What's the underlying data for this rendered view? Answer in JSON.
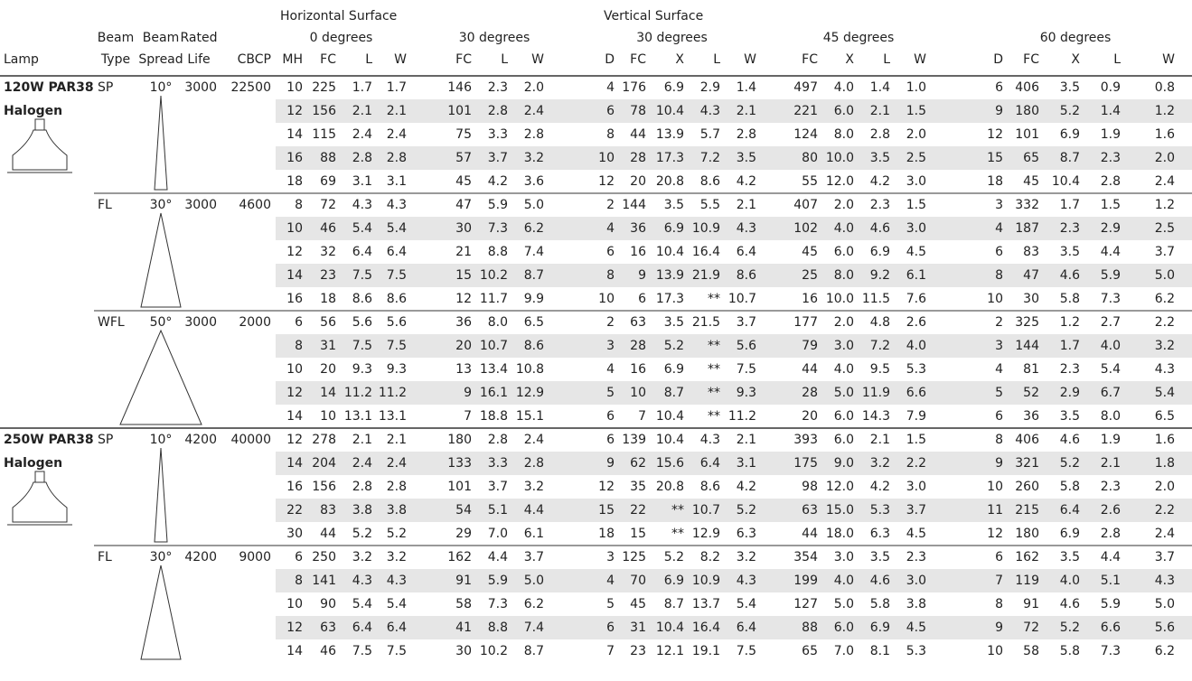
{
  "header": {
    "surfaces": [
      "Horizontal Surface",
      "Vertical Surface"
    ],
    "angles": [
      "0 degrees",
      "30 degrees",
      "30 degrees",
      "45 degrees",
      "60 degrees"
    ],
    "lamp": "Lamp",
    "beam_type": [
      "Beam",
      "Type"
    ],
    "beam_spread": [
      "Beam",
      "Spread"
    ],
    "rated_life": [
      "Rated",
      "Life"
    ],
    "cbcp": "CBCP",
    "columns": [
      "MH",
      "FC",
      "L",
      "W",
      "FC",
      "L",
      "W",
      "D",
      "FC",
      "X",
      "L",
      "W",
      "FC",
      "X",
      "L",
      "W",
      "D",
      "FC",
      "X",
      "L",
      "W"
    ]
  },
  "groups": [
    {
      "lamp": [
        "120W PAR38",
        "Halogen"
      ],
      "beam_type": "SP",
      "beam_spread": "10°",
      "rated_life": "3000",
      "cbcp": "22500",
      "rows": [
        [
          "10",
          "225",
          "1.7",
          "1.7",
          "146",
          "2.3",
          "2.0",
          "4",
          "176",
          "6.9",
          "2.9",
          "1.4",
          "497",
          "4.0",
          "1.4",
          "1.0",
          "6",
          "406",
          "3.5",
          "0.9",
          "0.8"
        ],
        [
          "12",
          "156",
          "2.1",
          "2.1",
          "101",
          "2.8",
          "2.4",
          "6",
          "78",
          "10.4",
          "4.3",
          "2.1",
          "221",
          "6.0",
          "2.1",
          "1.5",
          "9",
          "180",
          "5.2",
          "1.4",
          "1.2"
        ],
        [
          "14",
          "115",
          "2.4",
          "2.4",
          "75",
          "3.3",
          "2.8",
          "8",
          "44",
          "13.9",
          "5.7",
          "2.8",
          "124",
          "8.0",
          "2.8",
          "2.0",
          "12",
          "101",
          "6.9",
          "1.9",
          "1.6"
        ],
        [
          "16",
          "88",
          "2.8",
          "2.8",
          "57",
          "3.7",
          "3.2",
          "10",
          "28",
          "17.3",
          "7.2",
          "3.5",
          "80",
          "10.0",
          "3.5",
          "2.5",
          "15",
          "65",
          "8.7",
          "2.3",
          "2.0"
        ],
        [
          "18",
          "69",
          "3.1",
          "3.1",
          "45",
          "4.2",
          "3.6",
          "12",
          "20",
          "20.8",
          "8.6",
          "4.2",
          "55",
          "12.0",
          "4.2",
          "3.0",
          "18",
          "45",
          "10.4",
          "2.8",
          "2.4"
        ]
      ]
    },
    {
      "beam_type": "FL",
      "beam_spread": "30°",
      "rated_life": "3000",
      "cbcp": "4600",
      "rows": [
        [
          "8",
          "72",
          "4.3",
          "4.3",
          "47",
          "5.9",
          "5.0",
          "2",
          "144",
          "3.5",
          "5.5",
          "2.1",
          "407",
          "2.0",
          "2.3",
          "1.5",
          "3",
          "332",
          "1.7",
          "1.5",
          "1.2"
        ],
        [
          "10",
          "46",
          "5.4",
          "5.4",
          "30",
          "7.3",
          "6.2",
          "4",
          "36",
          "6.9",
          "10.9",
          "4.3",
          "102",
          "4.0",
          "4.6",
          "3.0",
          "4",
          "187",
          "2.3",
          "2.9",
          "2.5"
        ],
        [
          "12",
          "32",
          "6.4",
          "6.4",
          "21",
          "8.8",
          "7.4",
          "6",
          "16",
          "10.4",
          "16.4",
          "6.4",
          "45",
          "6.0",
          "6.9",
          "4.5",
          "6",
          "83",
          "3.5",
          "4.4",
          "3.7"
        ],
        [
          "14",
          "23",
          "7.5",
          "7.5",
          "15",
          "10.2",
          "8.7",
          "8",
          "9",
          "13.9",
          "21.9",
          "8.6",
          "25",
          "8.0",
          "9.2",
          "6.1",
          "8",
          "47",
          "4.6",
          "5.9",
          "5.0"
        ],
        [
          "16",
          "18",
          "8.6",
          "8.6",
          "12",
          "11.7",
          "9.9",
          "10",
          "6",
          "17.3",
          "**",
          "10.7",
          "16",
          "10.0",
          "11.5",
          "7.6",
          "10",
          "30",
          "5.8",
          "7.3",
          "6.2"
        ]
      ]
    },
    {
      "beam_type": "WFL",
      "beam_spread": "50°",
      "rated_life": "3000",
      "cbcp": "2000",
      "rows": [
        [
          "6",
          "56",
          "5.6",
          "5.6",
          "36",
          "8.0",
          "6.5",
          "2",
          "63",
          "3.5",
          "21.5",
          "3.7",
          "177",
          "2.0",
          "4.8",
          "2.6",
          "2",
          "325",
          "1.2",
          "2.7",
          "2.2"
        ],
        [
          "8",
          "31",
          "7.5",
          "7.5",
          "20",
          "10.7",
          "8.6",
          "3",
          "28",
          "5.2",
          "**",
          "5.6",
          "79",
          "3.0",
          "7.2",
          "4.0",
          "3",
          "144",
          "1.7",
          "4.0",
          "3.2"
        ],
        [
          "10",
          "20",
          "9.3",
          "9.3",
          "13",
          "13.4",
          "10.8",
          "4",
          "16",
          "6.9",
          "**",
          "7.5",
          "44",
          "4.0",
          "9.5",
          "5.3",
          "4",
          "81",
          "2.3",
          "5.4",
          "4.3"
        ],
        [
          "12",
          "14",
          "11.2",
          "11.2",
          "9",
          "16.1",
          "12.9",
          "5",
          "10",
          "8.7",
          "**",
          "9.3",
          "28",
          "5.0",
          "11.9",
          "6.6",
          "5",
          "52",
          "2.9",
          "6.7",
          "5.4"
        ],
        [
          "14",
          "10",
          "13.1",
          "13.1",
          "7",
          "18.8",
          "15.1",
          "6",
          "7",
          "10.4",
          "**",
          "11.2",
          "20",
          "6.0",
          "14.3",
          "7.9",
          "6",
          "36",
          "3.5",
          "8.0",
          "6.5"
        ]
      ]
    },
    {
      "lamp": [
        "250W PAR38",
        "Halogen"
      ],
      "beam_type": "SP",
      "beam_spread": "10°",
      "rated_life": "4200",
      "cbcp": "40000",
      "rows": [
        [
          "12",
          "278",
          "2.1",
          "2.1",
          "180",
          "2.8",
          "2.4",
          "6",
          "139",
          "10.4",
          "4.3",
          "2.1",
          "393",
          "6.0",
          "2.1",
          "1.5",
          "8",
          "406",
          "4.6",
          "1.9",
          "1.6"
        ],
        [
          "14",
          "204",
          "2.4",
          "2.4",
          "133",
          "3.3",
          "2.8",
          "9",
          "62",
          "15.6",
          "6.4",
          "3.1",
          "175",
          "9.0",
          "3.2",
          "2.2",
          "9",
          "321",
          "5.2",
          "2.1",
          "1.8"
        ],
        [
          "16",
          "156",
          "2.8",
          "2.8",
          "101",
          "3.7",
          "3.2",
          "12",
          "35",
          "20.8",
          "8.6",
          "4.2",
          "98",
          "12.0",
          "4.2",
          "3.0",
          "10",
          "260",
          "5.8",
          "2.3",
          "2.0"
        ],
        [
          "22",
          "83",
          "3.8",
          "3.8",
          "54",
          "5.1",
          "4.4",
          "15",
          "22",
          "**",
          "10.7",
          "5.2",
          "63",
          "15.0",
          "5.3",
          "3.7",
          "11",
          "215",
          "6.4",
          "2.6",
          "2.2"
        ],
        [
          "30",
          "44",
          "5.2",
          "5.2",
          "29",
          "7.0",
          "6.1",
          "18",
          "15",
          "**",
          "12.9",
          "6.3",
          "44",
          "18.0",
          "6.3",
          "4.5",
          "12",
          "180",
          "6.9",
          "2.8",
          "2.4"
        ]
      ]
    },
    {
      "beam_type": "FL",
      "beam_spread": "30°",
      "rated_life": "4200",
      "cbcp": "9000",
      "rows": [
        [
          "6",
          "250",
          "3.2",
          "3.2",
          "162",
          "4.4",
          "3.7",
          "3",
          "125",
          "5.2",
          "8.2",
          "3.2",
          "354",
          "3.0",
          "3.5",
          "2.3",
          "6",
          "162",
          "3.5",
          "4.4",
          "3.7"
        ],
        [
          "8",
          "141",
          "4.3",
          "4.3",
          "91",
          "5.9",
          "5.0",
          "4",
          "70",
          "6.9",
          "10.9",
          "4.3",
          "199",
          "4.0",
          "4.6",
          "3.0",
          "7",
          "119",
          "4.0",
          "5.1",
          "4.3"
        ],
        [
          "10",
          "90",
          "5.4",
          "5.4",
          "58",
          "7.3",
          "6.2",
          "5",
          "45",
          "8.7",
          "13.7",
          "5.4",
          "127",
          "5.0",
          "5.8",
          "3.8",
          "8",
          "91",
          "4.6",
          "5.9",
          "5.0"
        ],
        [
          "12",
          "63",
          "6.4",
          "6.4",
          "41",
          "8.8",
          "7.4",
          "6",
          "31",
          "10.4",
          "16.4",
          "6.4",
          "88",
          "6.0",
          "6.9",
          "4.5",
          "9",
          "72",
          "5.2",
          "6.6",
          "5.6"
        ],
        [
          "14",
          "46",
          "7.5",
          "7.5",
          "30",
          "10.2",
          "8.7",
          "7",
          "23",
          "12.1",
          "19.1",
          "7.5",
          "65",
          "7.0",
          "8.1",
          "5.3",
          "10",
          "58",
          "5.8",
          "7.3",
          "6.2"
        ]
      ]
    }
  ]
}
